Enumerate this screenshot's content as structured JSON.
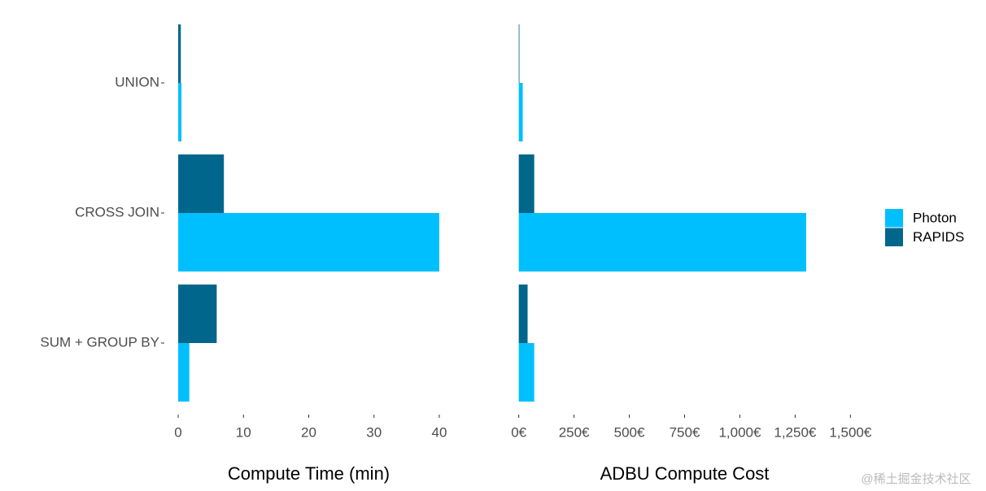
{
  "chart_data": [
    {
      "type": "bar",
      "orientation": "horizontal",
      "x_label": "Compute Time (min)",
      "categories": [
        "UNION",
        "CROSS JOIN",
        "SUM + GROUP BY"
      ],
      "series": [
        {
          "name": "Photon",
          "color": "#00bfff",
          "values": [
            0.5,
            40,
            1.7
          ]
        },
        {
          "name": "RAPIDS",
          "color": "#00668c",
          "values": [
            0.4,
            7,
            5.9
          ]
        }
      ],
      "xlim": [
        -2,
        42
      ],
      "xticks": [
        0,
        10,
        20,
        30,
        40
      ],
      "grid": false
    },
    {
      "type": "bar",
      "orientation": "horizontal",
      "x_label": "ADBU Compute Cost",
      "series": [
        {
          "color": "#00bfff",
          "values": [
            18,
            1300,
            70
          ]
        },
        {
          "color": "#00668c",
          "values": [
            3,
            70,
            40
          ]
        }
      ],
      "xlim": [
        -65,
        1565
      ],
      "xticks": [
        {
          "value": 0,
          "label": "0€"
        },
        {
          "value": 250,
          "label": "250€"
        },
        {
          "value": 500,
          "label": "500€"
        },
        {
          "value": 750,
          "label": "750€"
        },
        {
          "value": 1000,
          "label": "1,000€"
        },
        {
          "value": 1250,
          "label": "1,250€"
        },
        {
          "value": 1500,
          "label": "1,500€"
        }
      ],
      "grid": false
    }
  ],
  "watermark": "@稀土掘金技术社区"
}
